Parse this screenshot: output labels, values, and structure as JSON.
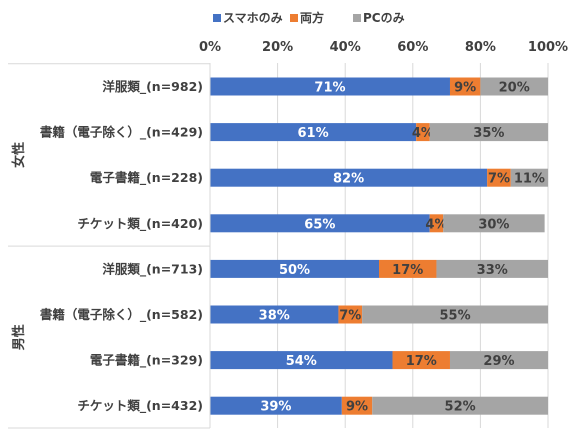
{
  "chart_data": {
    "type": "bar",
    "orientation": "horizontal",
    "stacked": "percent",
    "title": "",
    "xlabel": "",
    "ylabel": "",
    "xlim": [
      0,
      100
    ],
    "x_ticks": [
      "0%",
      "20%",
      "40%",
      "60%",
      "80%",
      "100%"
    ],
    "grid": true,
    "legend_position": "top",
    "groups": [
      {
        "name": "女性",
        "categories": [
          "洋服類_(n=982)",
          "書籍（電子除く）_(n=429)",
          "電子書籍_(n=228)",
          "チケット類_(n=420)"
        ]
      },
      {
        "name": "男性",
        "categories": [
          "洋服類_(n=713)",
          "書籍（電子除く）_(n=582)",
          "電子書籍_(n=329)",
          "チケット類_(n=432)"
        ]
      }
    ],
    "series": [
      {
        "name": "スマホのみ",
        "color": "#4472C4",
        "label_color": "#ffffff",
        "values": [
          71,
          61,
          82,
          65,
          50,
          38,
          54,
          39
        ],
        "labels": [
          "71%",
          "61%",
          "82%",
          "65%",
          "50%",
          "38%",
          "54%",
          "39%"
        ]
      },
      {
        "name": "両方",
        "color": "#ED7D31",
        "label_color": "#404040",
        "values": [
          9,
          4,
          7,
          4,
          17,
          7,
          17,
          9
        ],
        "labels": [
          "9%",
          "4%",
          "7%",
          "4%",
          "17%",
          "7%",
          "17%",
          "9%"
        ]
      },
      {
        "name": "PCのみ",
        "color": "#A5A5A5",
        "label_color": "#404040",
        "values": [
          20,
          35,
          11,
          30,
          33,
          55,
          29,
          52
        ],
        "labels": [
          "20%",
          "35%",
          "11%",
          "30%",
          "33%",
          "55%",
          "29%",
          "52%"
        ]
      }
    ]
  }
}
